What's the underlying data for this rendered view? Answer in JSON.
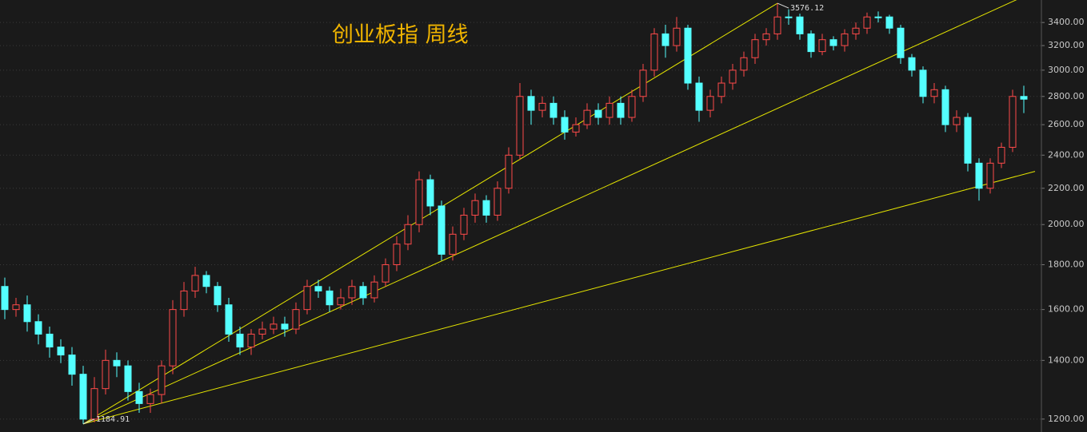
{
  "chart_data": {
    "type": "candlestick",
    "title": "创业板指 周线",
    "log_scale": true,
    "grid": true,
    "ylim": [
      1160,
      3607
    ],
    "yticks": [
      {
        "value": 1200,
        "label": "1200.00"
      },
      {
        "value": 1400,
        "label": "1400.00"
      },
      {
        "value": 1600,
        "label": "1600.00"
      },
      {
        "value": 1800,
        "label": "1800.00"
      },
      {
        "value": 2000,
        "label": "2000.00"
      },
      {
        "value": 2200,
        "label": "2200.00"
      },
      {
        "value": 2400,
        "label": "2400.00"
      },
      {
        "value": 2600,
        "label": "2600.00"
      },
      {
        "value": 2800,
        "label": "2800.00"
      },
      {
        "value": 3000,
        "label": "3000.00"
      },
      {
        "value": 3200,
        "label": "3200.00"
      },
      {
        "value": 3400,
        "label": "3400.00"
      }
    ],
    "series": [
      {
        "up_color": "#ff4a4a",
        "down_color": "#54ffff",
        "open": [
          1700,
          1600,
          1620,
          1550,
          1500,
          1450,
          1420,
          1350,
          1200,
          1300,
          1400,
          1380,
          1290,
          1250,
          1280,
          1380,
          1600,
          1680,
          1750,
          1700,
          1620,
          1500,
          1450,
          1500,
          1520,
          1540,
          1520,
          1600,
          1700,
          1680,
          1620,
          1650,
          1700,
          1650,
          1720,
          1800,
          1900,
          2000,
          2250,
          2100,
          1850,
          1950,
          2050,
          2130,
          2050,
          2200,
          2400,
          2800,
          2700,
          2750,
          2650,
          2550,
          2600,
          2700,
          2650,
          2750,
          2650,
          2800,
          3000,
          3300,
          3200,
          3350,
          2900,
          2700,
          2800,
          2900,
          3000,
          3100,
          3250,
          3300,
          3450,
          3450,
          3300,
          3150,
          3250,
          3200,
          3300,
          3350,
          3450,
          3450,
          3350,
          3100,
          3000,
          2800,
          2850,
          2600,
          2650,
          2350,
          2200,
          2350,
          2450,
          2800
        ],
        "high": [
          1740,
          1650,
          1660,
          1580,
          1530,
          1480,
          1450,
          1380,
          1340,
          1440,
          1430,
          1400,
          1320,
          1300,
          1400,
          1640,
          1720,
          1790,
          1770,
          1720,
          1650,
          1530,
          1520,
          1550,
          1570,
          1570,
          1630,
          1730,
          1730,
          1700,
          1690,
          1730,
          1720,
          1750,
          1830,
          1940,
          2050,
          2300,
          2280,
          2130,
          1990,
          2090,
          2170,
          2160,
          2240,
          2450,
          2900,
          2850,
          2800,
          2800,
          2700,
          2650,
          2750,
          2750,
          2800,
          2800,
          2850,
          3050,
          3350,
          3380,
          3450,
          3380,
          2950,
          2850,
          2950,
          3050,
          3150,
          3300,
          3350,
          3576.12,
          3520,
          3480,
          3330,
          3300,
          3280,
          3340,
          3400,
          3490,
          3500,
          3470,
          3380,
          3130,
          3030,
          2900,
          2880,
          2700,
          2680,
          2380,
          2380,
          2480,
          2850,
          2880
        ],
        "low": [
          1560,
          1570,
          1510,
          1460,
          1410,
          1390,
          1310,
          1184.91,
          1190,
          1280,
          1340,
          1260,
          1220,
          1220,
          1250,
          1350,
          1570,
          1650,
          1670,
          1590,
          1470,
          1420,
          1420,
          1480,
          1500,
          1490,
          1500,
          1580,
          1650,
          1590,
          1600,
          1620,
          1620,
          1630,
          1700,
          1770,
          1870,
          1960,
          2050,
          1820,
          1820,
          1920,
          2010,
          2010,
          2020,
          2170,
          2370,
          2600,
          2650,
          2600,
          2500,
          2520,
          2570,
          2600,
          2600,
          2600,
          2620,
          2760,
          2950,
          3100,
          3150,
          2850,
          2620,
          2650,
          2750,
          2850,
          2950,
          3050,
          3200,
          3250,
          3380,
          3250,
          3100,
          3120,
          3160,
          3150,
          3250,
          3300,
          3400,
          3300,
          3050,
          2950,
          2750,
          2750,
          2550,
          2550,
          2300,
          2130,
          2170,
          2320,
          2420,
          2680
        ],
        "close": [
          1600,
          1620,
          1550,
          1500,
          1450,
          1420,
          1350,
          1200,
          1300,
          1400,
          1380,
          1290,
          1250,
          1280,
          1380,
          1600,
          1680,
          1750,
          1700,
          1620,
          1500,
          1450,
          1500,
          1520,
          1540,
          1520,
          1600,
          1700,
          1680,
          1620,
          1650,
          1700,
          1650,
          1720,
          1800,
          1900,
          2000,
          2250,
          2100,
          1850,
          1950,
          2050,
          2130,
          2050,
          2200,
          2400,
          2800,
          2700,
          2750,
          2650,
          2550,
          2600,
          2700,
          2650,
          2750,
          2650,
          2800,
          3000,
          3300,
          3200,
          3350,
          2900,
          2700,
          2800,
          2900,
          3000,
          3100,
          3250,
          3300,
          3450,
          3450,
          3300,
          3150,
          3250,
          3200,
          3300,
          3350,
          3450,
          3450,
          3350,
          3100,
          3000,
          2800,
          2850,
          2600,
          2650,
          2350,
          2200,
          2350,
          2450,
          2800,
          2780
        ]
      }
    ],
    "trend_lines": [
      {
        "color": "#e6e600",
        "points": [
          [
            7,
            1184.91
          ],
          [
            69,
            3576.12
          ]
        ]
      },
      {
        "color": "#e6e600",
        "points": [
          [
            7,
            1184.91
          ],
          [
            92,
            3690
          ]
        ]
      },
      {
        "color": "#e6e600",
        "points": [
          [
            7,
            1184.91
          ],
          [
            92,
            2300
          ]
        ]
      }
    ]
  }
}
